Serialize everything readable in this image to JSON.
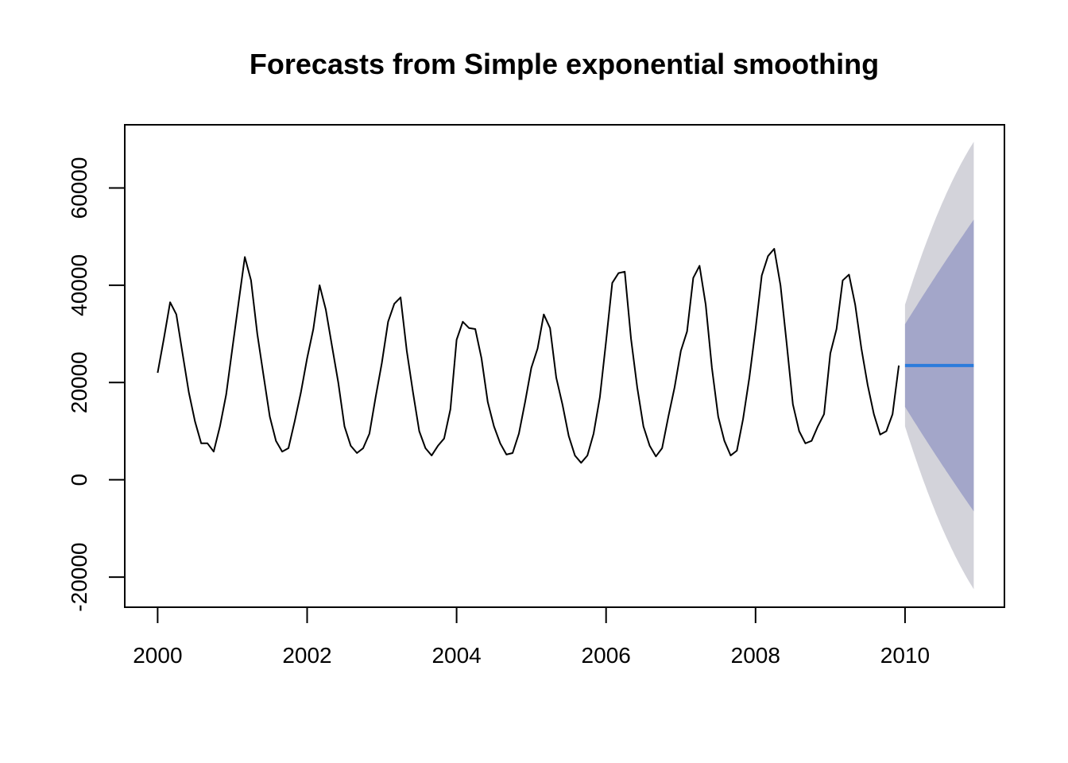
{
  "chart_data": {
    "type": "line",
    "title": "Forecasts from Simple exponential smoothing",
    "xlabel": "",
    "ylabel": "",
    "xlim": [
      1999.56,
      2011.33
    ],
    "ylim": [
      -26200,
      73000
    ],
    "x_ticks": [
      2000,
      2002,
      2004,
      2006,
      2008,
      2010
    ],
    "x_tick_labels": [
      "2000",
      "2002",
      "2004",
      "2006",
      "2008",
      "2010"
    ],
    "y_ticks": [
      -20000,
      0,
      20000,
      40000,
      60000
    ],
    "y_tick_labels": [
      "-20000",
      "0",
      "20000",
      "40000",
      "60000"
    ],
    "grid": false,
    "legend": "none",
    "series": [
      {
        "kind": "observed",
        "start": 2000,
        "frequency": 12,
        "values": [
          22000,
          29000,
          36500,
          34000,
          26000,
          18000,
          12000,
          7500,
          7500,
          5800,
          11000,
          17500,
          27000,
          36500,
          45800,
          41000,
          30000,
          21500,
          13000,
          8000,
          5800,
          6500,
          12000,
          18000,
          25000,
          31000,
          40000,
          35000,
          27500,
          20000,
          11000,
          7000,
          5500,
          6500,
          9500,
          17000,
          24000,
          32500,
          36200,
          37500,
          26500,
          18000,
          10000,
          6500,
          5000,
          7000,
          8500,
          14500,
          28800,
          32500,
          31200,
          31000,
          25000,
          16000,
          11000,
          7500,
          5200,
          5500,
          9500,
          16000,
          23000,
          27000,
          34000,
          31200,
          21000,
          15500,
          9000,
          5000,
          3500,
          5000,
          9500,
          17000,
          28500,
          40500,
          42500,
          42800,
          29000,
          19000,
          11000,
          7000,
          4800,
          6500,
          13000,
          19000,
          26500,
          30500,
          41500,
          44000,
          36000,
          23000,
          13000,
          8000,
          5000,
          6000,
          12500,
          21000,
          31000,
          42000,
          46000,
          47500,
          40000,
          28000,
          15500,
          10000,
          7500,
          8000,
          11000,
          13500,
          26000,
          31000,
          41000,
          42200,
          36000,
          27000,
          19500,
          13500,
          9300,
          10000,
          13500,
          23500
        ],
        "color": "#000000"
      },
      {
        "kind": "forecast",
        "x": [
          2010.0,
          2010.92
        ],
        "values": [
          23500,
          23500
        ],
        "color": "#2b7bdc"
      }
    ],
    "intervals": [
      {
        "level": "95%",
        "x": [
          2010.0,
          2010.5,
          2010.92
        ],
        "lower": [
          11000,
          -10000,
          -22500
        ],
        "upper": [
          36000,
          57000,
          69500
        ],
        "color": "#d3d3da"
      },
      {
        "level": "80%",
        "x": [
          2010.0,
          2010.5,
          2010.92
        ],
        "lower": [
          15000,
          3000,
          -6500
        ],
        "upper": [
          32000,
          44000,
          53500
        ],
        "color": "#a3a6c9"
      }
    ]
  }
}
